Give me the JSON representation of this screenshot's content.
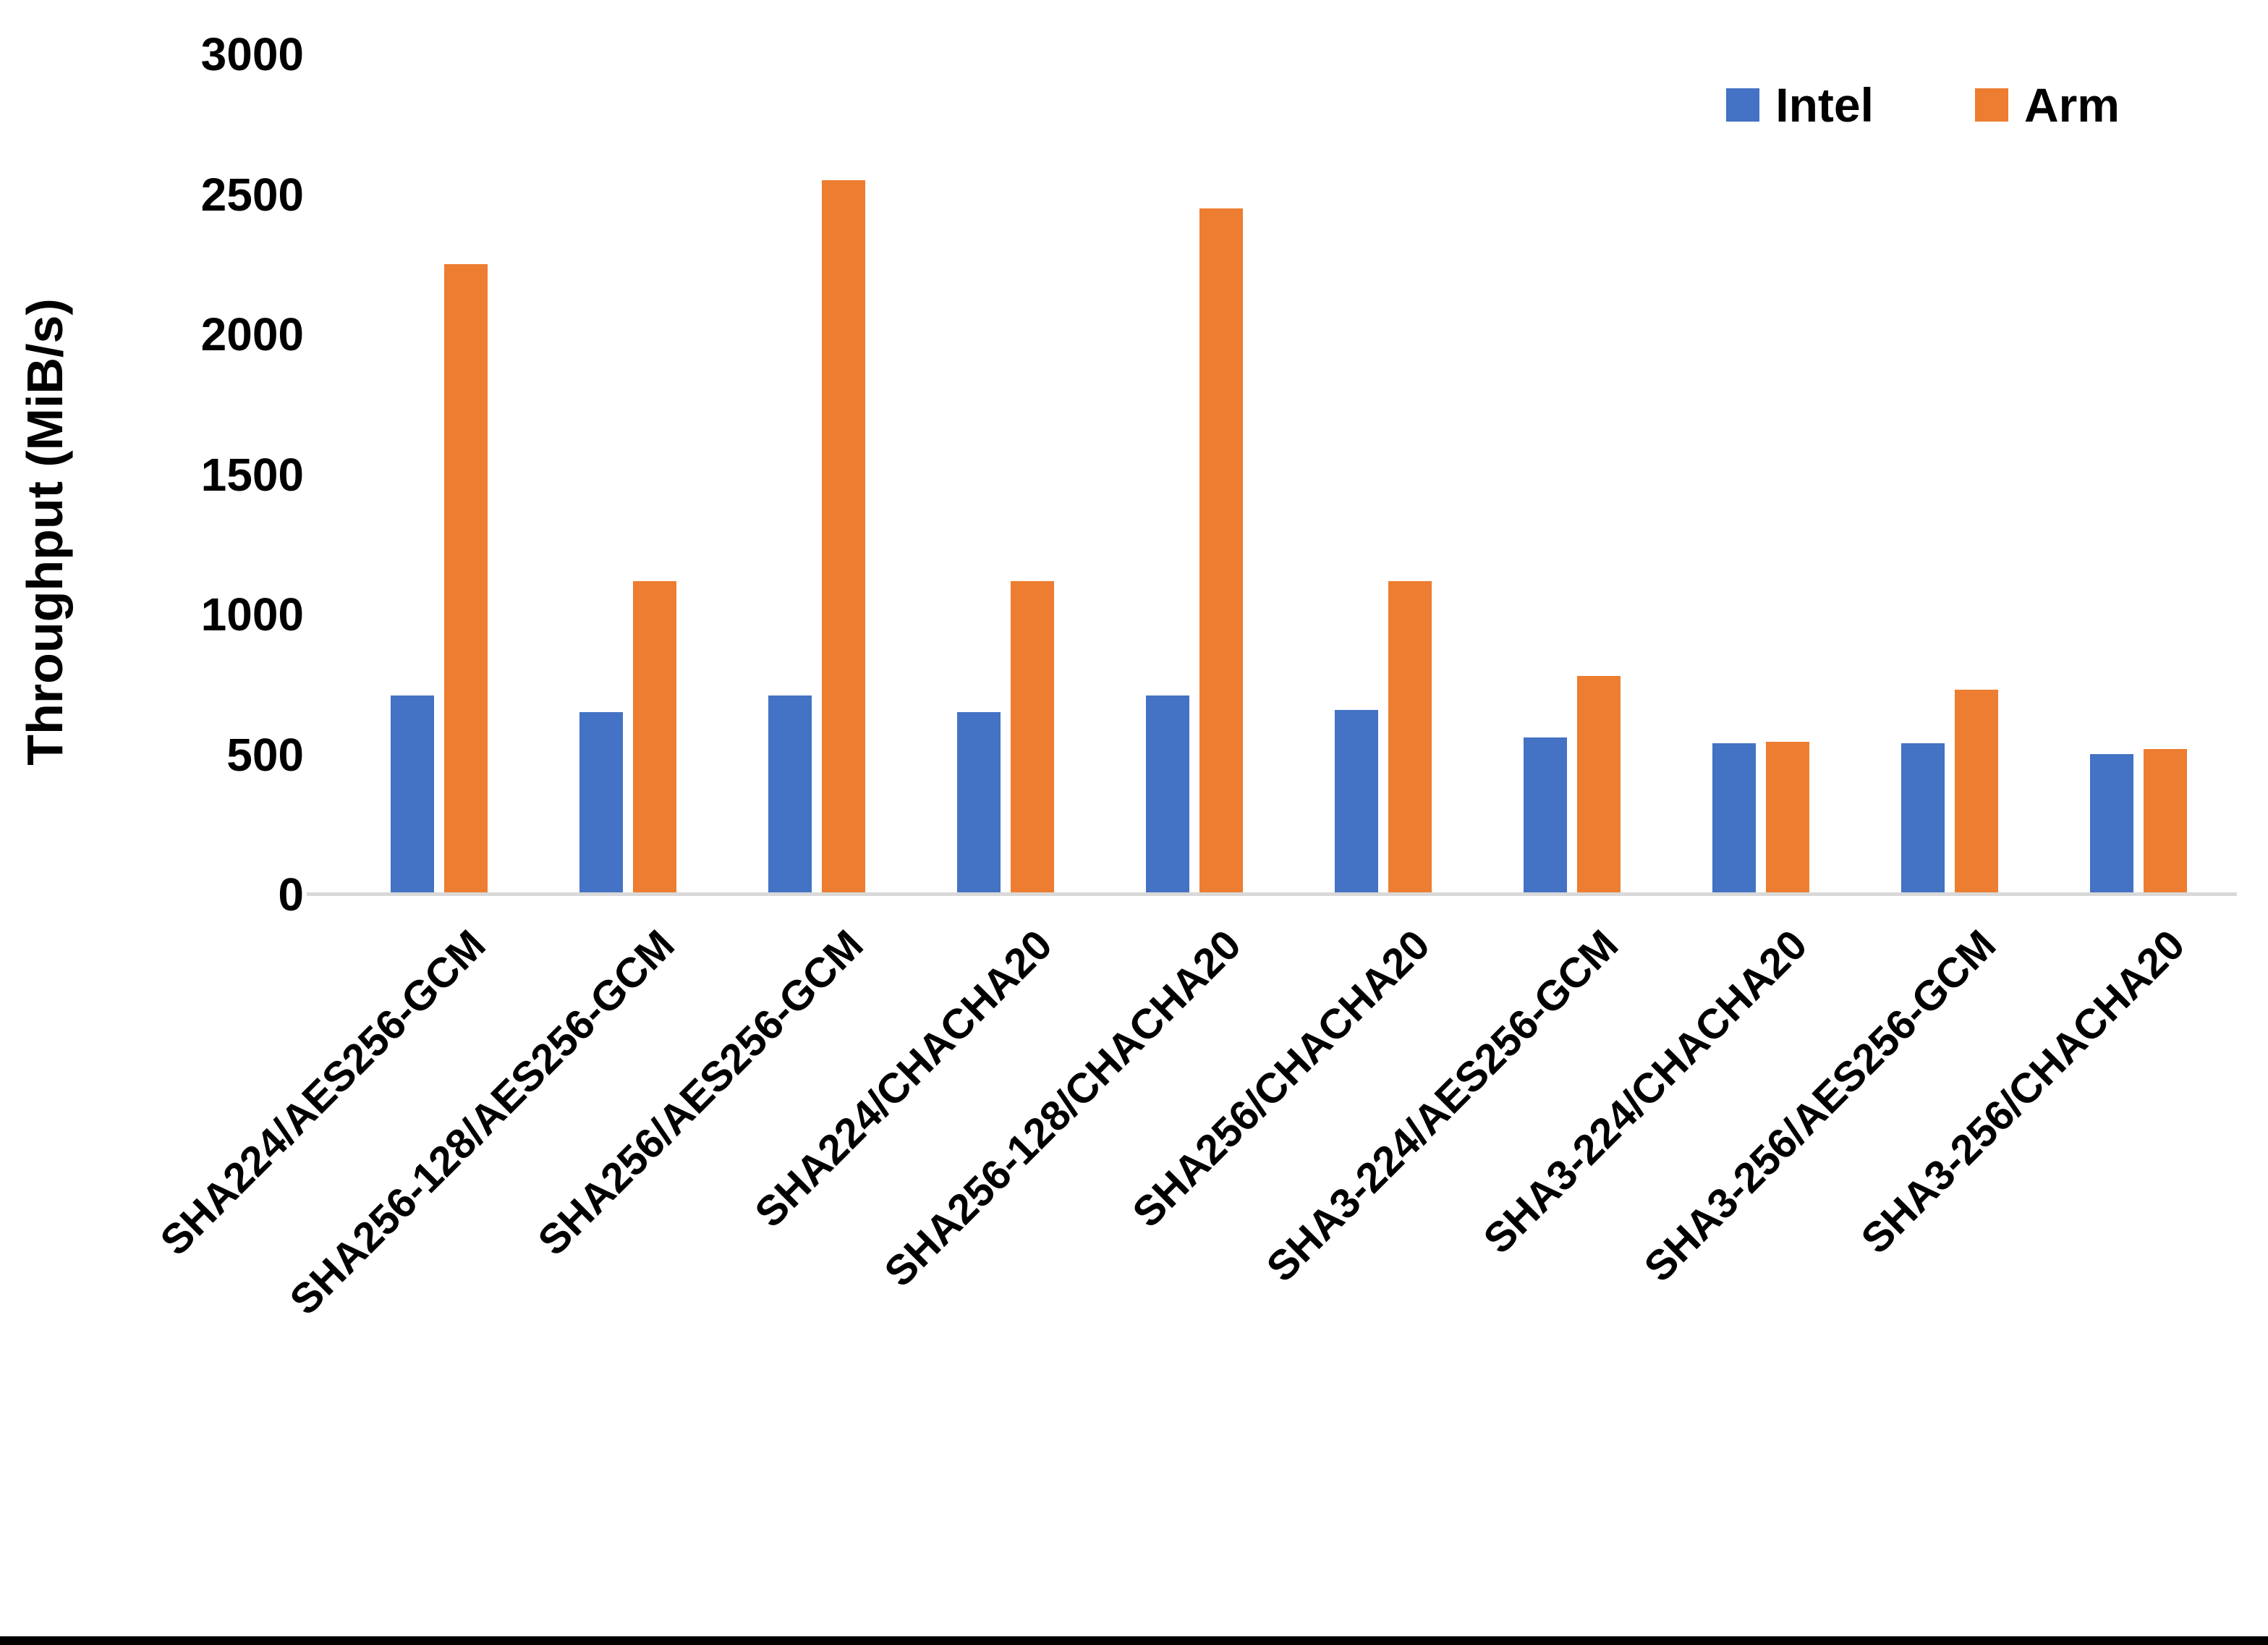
{
  "chart_data": {
    "type": "bar",
    "title": "",
    "xlabel": "",
    "ylabel": "Throughput (MiB/s)",
    "ylim": [
      0,
      3000
    ],
    "ytick_interval": 500,
    "yticks": [
      0,
      500,
      1000,
      1500,
      2000,
      2500,
      3000
    ],
    "grid": false,
    "legend_position": "top-right",
    "categories": [
      "SHA224/AES256-GCM",
      "SHA256-128/AES256-GCM",
      "SHA256/AES256-GCM",
      "SHA224/CHACHA20",
      "SHA256-128/CHACHA20",
      "SHA256/CHACHA20",
      "SHA3-224/AES256-GCM",
      "SHA3-224/CHACHA20",
      "SHA3-256/AES256-GCM",
      "SHA3-256/CHACHA20"
    ],
    "series": [
      {
        "name": "Intel",
        "color": "#4472C4",
        "values": [
          710,
          650,
          710,
          650,
          710,
          660,
          560,
          540,
          540,
          500
        ]
      },
      {
        "name": "Arm",
        "color": "#ED7D31",
        "values": [
          2250,
          1120,
          2550,
          1120,
          2450,
          1120,
          780,
          545,
          730,
          520
        ]
      }
    ]
  },
  "colors": {
    "axis_line": "#d9d9d9",
    "bottom_border": "#000000"
  }
}
